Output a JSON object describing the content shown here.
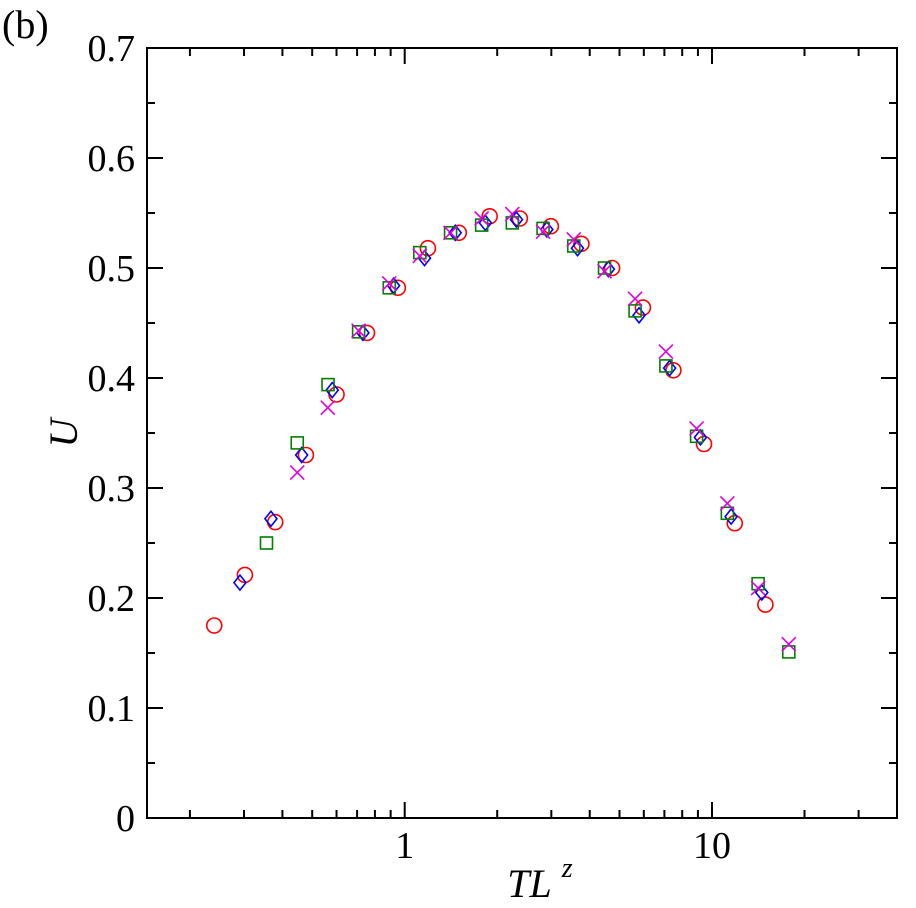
{
  "chart_data": {
    "type": "scatter",
    "panel_label": "(b)",
    "xlabel": "TL",
    "xlabel_superscript": "z",
    "ylabel": "U",
    "x_scale": "log",
    "xlim": [
      0.145,
      40
    ],
    "ylim": [
      0,
      0.7
    ],
    "x_tick_labels": [
      "1",
      "10"
    ],
    "x_major_ticks": [
      1,
      10
    ],
    "y_ticks": [
      0,
      0.1,
      0.2,
      0.3,
      0.4,
      0.5,
      0.6,
      0.7
    ],
    "y_tick_labels": [
      "0",
      "0.1",
      "0.2",
      "0.3",
      "0.4",
      "0.5",
      "0.6",
      "0.7"
    ],
    "grid": false,
    "legend": "none",
    "series": [
      {
        "marker": "circle",
        "color": "#ff0000",
        "points": [
          [
            0.24,
            0.175
          ],
          [
            0.302,
            0.221
          ],
          [
            0.379,
            0.269
          ],
          [
            0.477,
            0.33
          ],
          [
            0.6,
            0.385
          ],
          [
            0.754,
            0.441
          ],
          [
            0.95,
            0.482
          ],
          [
            1.19,
            0.518
          ],
          [
            1.5,
            0.532
          ],
          [
            1.89,
            0.547
          ],
          [
            2.37,
            0.545
          ],
          [
            2.99,
            0.538
          ],
          [
            3.76,
            0.522
          ],
          [
            4.73,
            0.5
          ],
          [
            5.96,
            0.464
          ],
          [
            7.49,
            0.407
          ],
          [
            9.42,
            0.34
          ],
          [
            11.86,
            0.268
          ],
          [
            14.92,
            0.194
          ]
        ]
      },
      {
        "marker": "diamond",
        "color": "#0000ff",
        "points": [
          [
            0.291,
            0.214
          ],
          [
            0.367,
            0.272
          ],
          [
            0.462,
            0.33
          ],
          [
            0.581,
            0.389
          ],
          [
            0.731,
            0.441
          ],
          [
            0.92,
            0.484
          ],
          [
            1.16,
            0.509
          ],
          [
            1.46,
            0.532
          ],
          [
            1.83,
            0.541
          ],
          [
            2.31,
            0.544
          ],
          [
            2.9,
            0.535
          ],
          [
            3.65,
            0.518
          ],
          [
            4.6,
            0.499
          ],
          [
            5.79,
            0.457
          ],
          [
            7.28,
            0.409
          ],
          [
            9.17,
            0.346
          ],
          [
            11.54,
            0.274
          ],
          [
            14.52,
            0.205
          ]
        ]
      },
      {
        "marker": "square",
        "color": "#008000",
        "points": [
          [
            0.355,
            0.25
          ],
          [
            0.447,
            0.341
          ],
          [
            0.563,
            0.394
          ],
          [
            0.708,
            0.442
          ],
          [
            0.891,
            0.482
          ],
          [
            1.12,
            0.514
          ],
          [
            1.41,
            0.532
          ],
          [
            1.78,
            0.539
          ],
          [
            2.24,
            0.541
          ],
          [
            2.82,
            0.536
          ],
          [
            3.55,
            0.52
          ],
          [
            4.47,
            0.5
          ],
          [
            5.62,
            0.461
          ],
          [
            7.08,
            0.411
          ],
          [
            8.91,
            0.347
          ],
          [
            11.22,
            0.277
          ],
          [
            14.13,
            0.213
          ],
          [
            17.78,
            0.151
          ]
        ]
      },
      {
        "marker": "cross",
        "color": "#e000e0",
        "points": [
          [
            0.447,
            0.314
          ],
          [
            0.562,
            0.373
          ],
          [
            0.708,
            0.443
          ],
          [
            0.891,
            0.486
          ],
          [
            1.12,
            0.511
          ],
          [
            1.41,
            0.532
          ],
          [
            1.78,
            0.545
          ],
          [
            2.24,
            0.549
          ],
          [
            2.82,
            0.533
          ],
          [
            3.55,
            0.526
          ],
          [
            4.47,
            0.497
          ],
          [
            5.62,
            0.472
          ],
          [
            7.08,
            0.424
          ],
          [
            8.91,
            0.354
          ],
          [
            11.22,
            0.286
          ],
          [
            14.13,
            0.209
          ],
          [
            17.78,
            0.158
          ]
        ]
      }
    ]
  }
}
